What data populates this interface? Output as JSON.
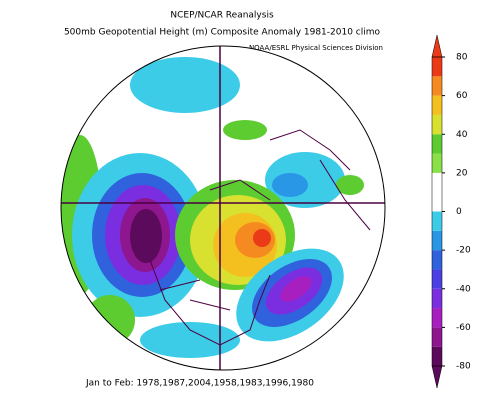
{
  "header": {
    "title": "NCEP/NCAR Reanalysis",
    "subtitle": "500mb Geopotential Height (m) Composite Anomaly 1981-2010 climo",
    "credit": "NOAA/ESRL Physical Sciences Division"
  },
  "footer": "Jan to Feb: 1978,1987,2004,1958,1983,1996,1980",
  "colorbar": {
    "range": [
      -80,
      80
    ],
    "ticks": [
      80,
      60,
      40,
      20,
      0,
      -20,
      -40,
      -60,
      -80
    ],
    "colors": [
      "#5c0a5c",
      "#8e168e",
      "#a81fc0",
      "#7a2ee0",
      "#4a3fe0",
      "#2f62dc",
      "#2a96e6",
      "#3ccce8",
      "#ffffff",
      "#ffffff",
      "#8ae048",
      "#5ccc30",
      "#d8e030",
      "#f4c020",
      "#f48a20",
      "#ea3a18"
    ]
  }
}
